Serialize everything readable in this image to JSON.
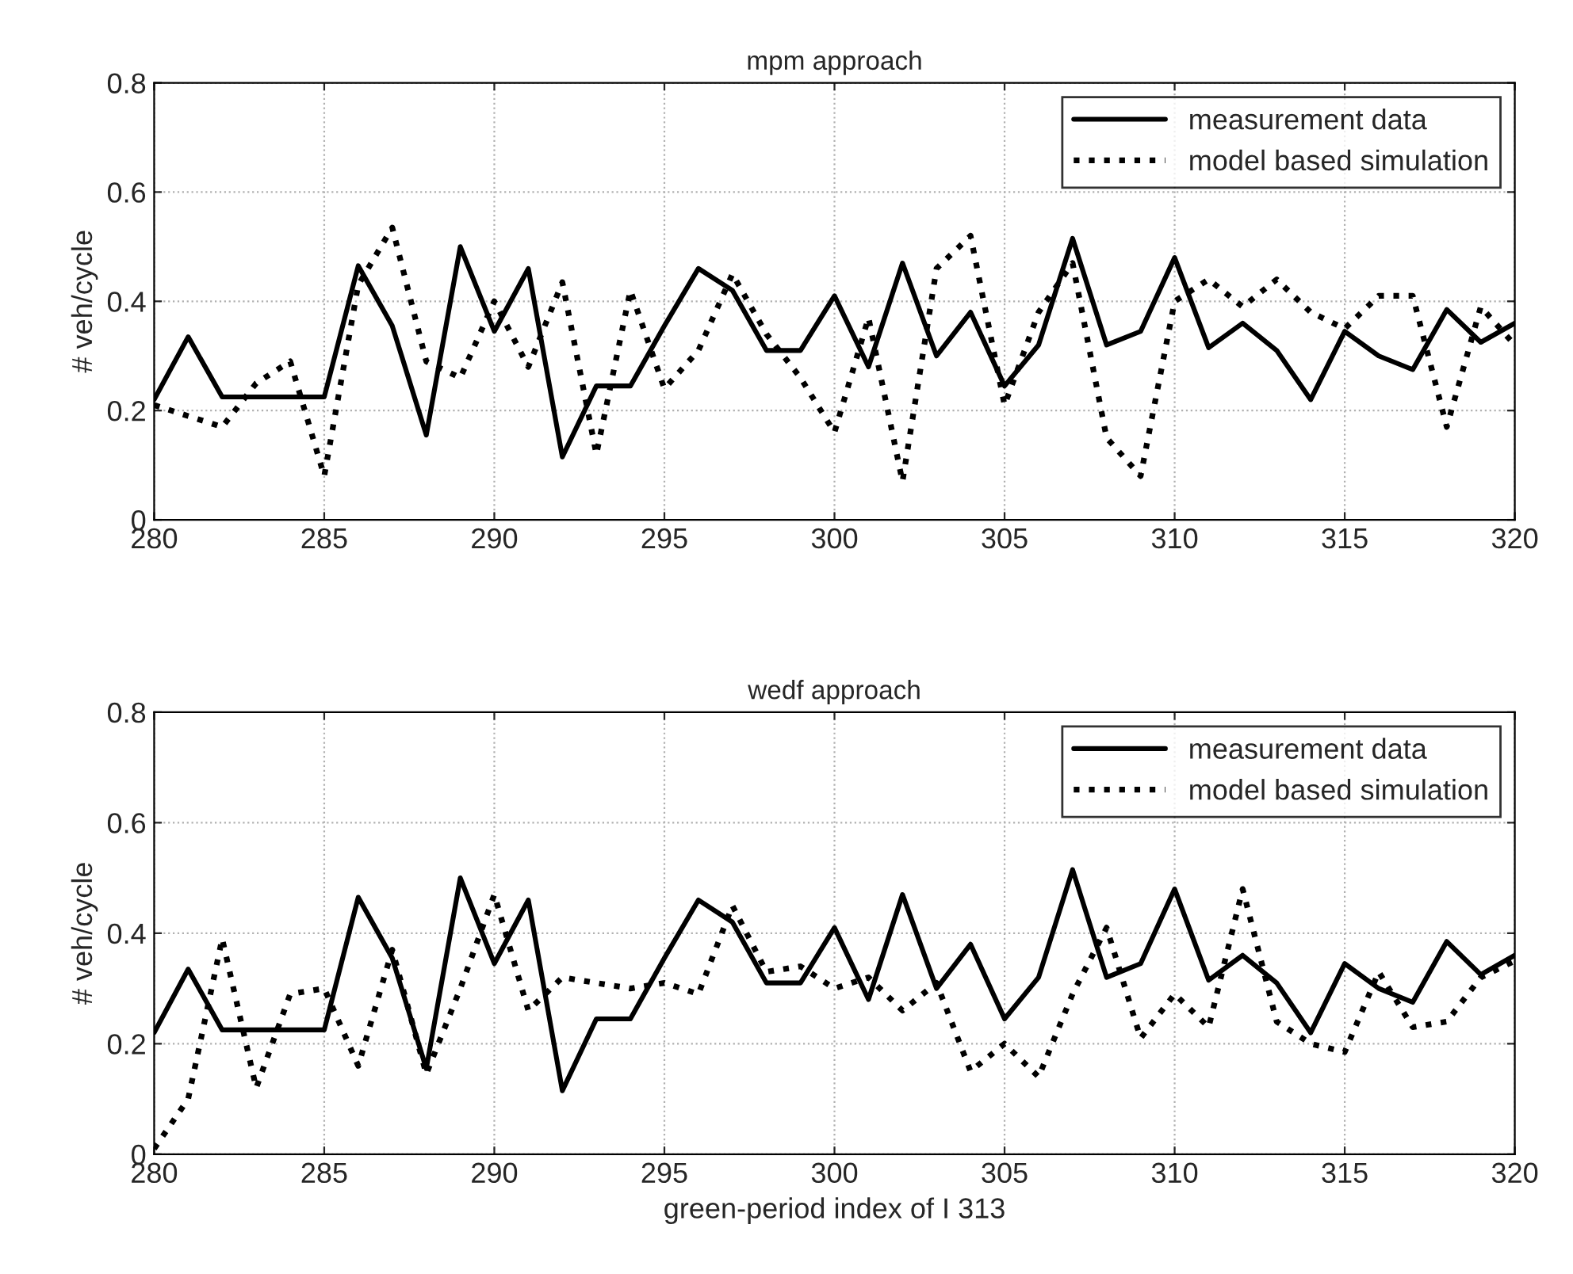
{
  "chart_data": [
    {
      "type": "line",
      "title": "mpm approach",
      "ylabel": "# veh/cycle",
      "x": [
        280,
        281,
        282,
        283,
        284,
        285,
        286,
        287,
        288,
        289,
        290,
        291,
        292,
        293,
        294,
        295,
        296,
        297,
        298,
        299,
        300,
        301,
        302,
        303,
        304,
        305,
        306,
        307,
        308,
        309,
        310,
        311,
        312,
        313,
        314,
        315,
        316,
        317,
        318,
        319,
        320
      ],
      "series": [
        {
          "name": "measurement data",
          "color": "#000000",
          "line_style": "solid",
          "values": [
            0.22,
            0.335,
            0.225,
            0.225,
            0.225,
            0.225,
            0.465,
            0.355,
            0.155,
            0.5,
            0.345,
            0.46,
            0.115,
            0.245,
            0.245,
            0.355,
            0.46,
            0.42,
            0.31,
            0.31,
            0.41,
            0.28,
            0.47,
            0.3,
            0.38,
            0.245,
            0.32,
            0.515,
            0.32,
            0.345,
            0.48,
            0.315,
            0.36,
            0.31,
            0.22,
            0.345,
            0.3,
            0.275,
            0.385,
            0.325,
            0.36
          ]
        },
        {
          "name": "model based simulation",
          "color": "#000000",
          "line_style": "dotted",
          "values": [
            0.21,
            0.19,
            0.17,
            0.25,
            0.29,
            0.08,
            0.43,
            0.535,
            0.29,
            0.26,
            0.4,
            0.28,
            0.435,
            0.12,
            0.42,
            0.24,
            0.31,
            0.45,
            0.34,
            0.26,
            0.16,
            0.37,
            0.07,
            0.46,
            0.52,
            0.21,
            0.38,
            0.47,
            0.15,
            0.08,
            0.4,
            0.44,
            0.39,
            0.44,
            0.38,
            0.35,
            0.41,
            0.41,
            0.17,
            0.39,
            0.32
          ]
        }
      ],
      "xlim": [
        280,
        320
      ],
      "xticks": [
        280,
        285,
        290,
        295,
        300,
        305,
        310,
        315,
        320
      ],
      "ylim": [
        0,
        0.8
      ],
      "yticks": [
        0,
        0.2,
        0.4,
        0.6,
        0.8
      ],
      "grid": true,
      "legend": "top right",
      "marker": "none"
    },
    {
      "type": "line",
      "title": "wedf approach",
      "ylabel": "# veh/cycle",
      "xlabel": "green-period index of I 313",
      "x": [
        280,
        281,
        282,
        283,
        284,
        285,
        286,
        287,
        288,
        289,
        290,
        291,
        292,
        293,
        294,
        295,
        296,
        297,
        298,
        299,
        300,
        301,
        302,
        303,
        304,
        305,
        306,
        307,
        308,
        309,
        310,
        311,
        312,
        313,
        314,
        315,
        316,
        317,
        318,
        319,
        320
      ],
      "series": [
        {
          "name": "measurement data",
          "color": "#000000",
          "line_style": "solid",
          "values": [
            0.22,
            0.335,
            0.225,
            0.225,
            0.225,
            0.225,
            0.465,
            0.355,
            0.155,
            0.5,
            0.345,
            0.46,
            0.115,
            0.245,
            0.245,
            0.355,
            0.46,
            0.42,
            0.31,
            0.31,
            0.41,
            0.28,
            0.47,
            0.3,
            0.38,
            0.245,
            0.32,
            0.515,
            0.32,
            0.345,
            0.48,
            0.315,
            0.36,
            0.31,
            0.22,
            0.345,
            0.3,
            0.275,
            0.385,
            0.325,
            0.36
          ]
        },
        {
          "name": "model based simulation",
          "color": "#000000",
          "line_style": "dotted",
          "values": [
            0.01,
            0.1,
            0.39,
            0.12,
            0.29,
            0.3,
            0.16,
            0.37,
            0.145,
            0.3,
            0.47,
            0.26,
            0.32,
            0.31,
            0.3,
            0.31,
            0.29,
            0.45,
            0.33,
            0.34,
            0.3,
            0.32,
            0.26,
            0.31,
            0.15,
            0.2,
            0.14,
            0.29,
            0.41,
            0.21,
            0.29,
            0.23,
            0.48,
            0.24,
            0.2,
            0.185,
            0.33,
            0.23,
            0.24,
            0.32,
            0.35
          ]
        }
      ],
      "xlim": [
        280,
        320
      ],
      "xticks": [
        280,
        285,
        290,
        295,
        300,
        305,
        310,
        315,
        320
      ],
      "ylim": [
        0,
        0.8
      ],
      "yticks": [
        0,
        0.2,
        0.4,
        0.6,
        0.8
      ],
      "grid": true,
      "legend": "top right",
      "marker": "none"
    }
  ]
}
